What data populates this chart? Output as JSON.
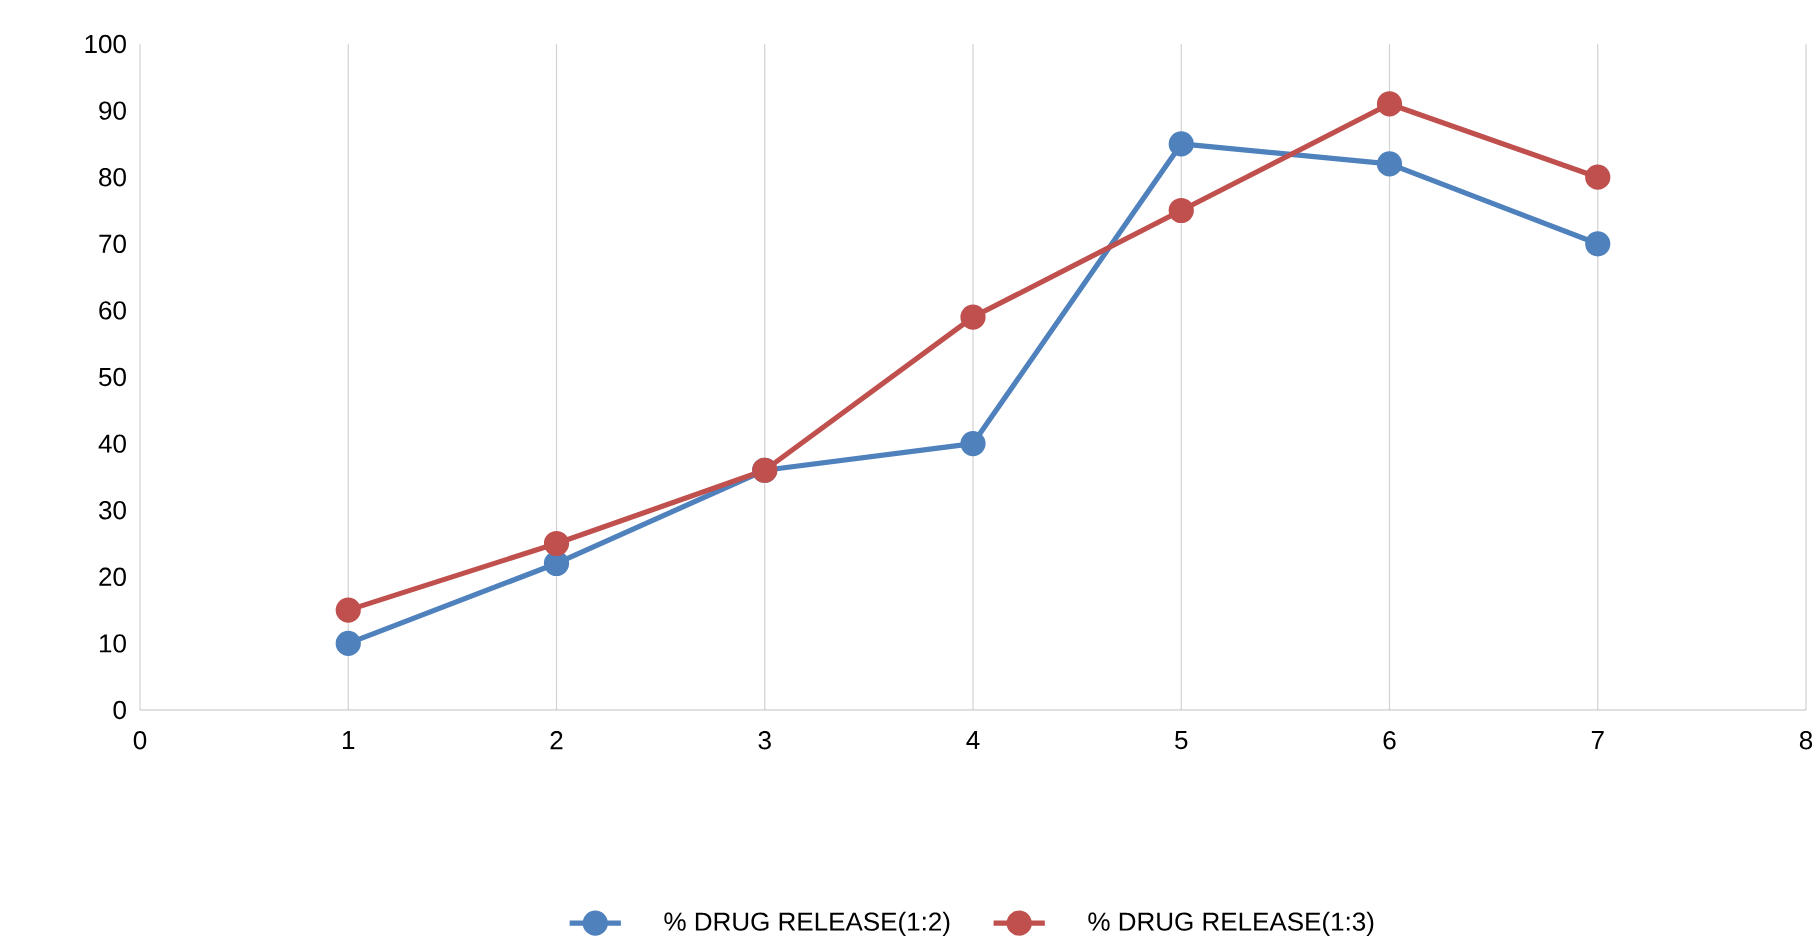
{
  "chart_data": {
    "type": "line",
    "x": [
      1,
      2,
      3,
      4,
      5,
      6,
      7
    ],
    "series": [
      {
        "name": "% DRUG RELEASE(1:2)",
        "color": "#4f81bd",
        "values": [
          10,
          22,
          36,
          40,
          85,
          82,
          70
        ]
      },
      {
        "name": "% DRUG RELEASE(1:3)",
        "color": "#c0504d",
        "values": [
          15,
          25,
          36,
          59,
          75,
          91,
          80
        ]
      }
    ],
    "xlim": [
      0,
      8
    ],
    "ylim": [
      0,
      100
    ],
    "xticks": [
      0,
      1,
      2,
      3,
      4,
      5,
      6,
      7,
      8
    ],
    "yticks": [
      0,
      10,
      20,
      30,
      40,
      50,
      60,
      70,
      80,
      90,
      100
    ],
    "grid": "x",
    "legend": "bottom",
    "marker": "circle",
    "line_style": "solid"
  }
}
